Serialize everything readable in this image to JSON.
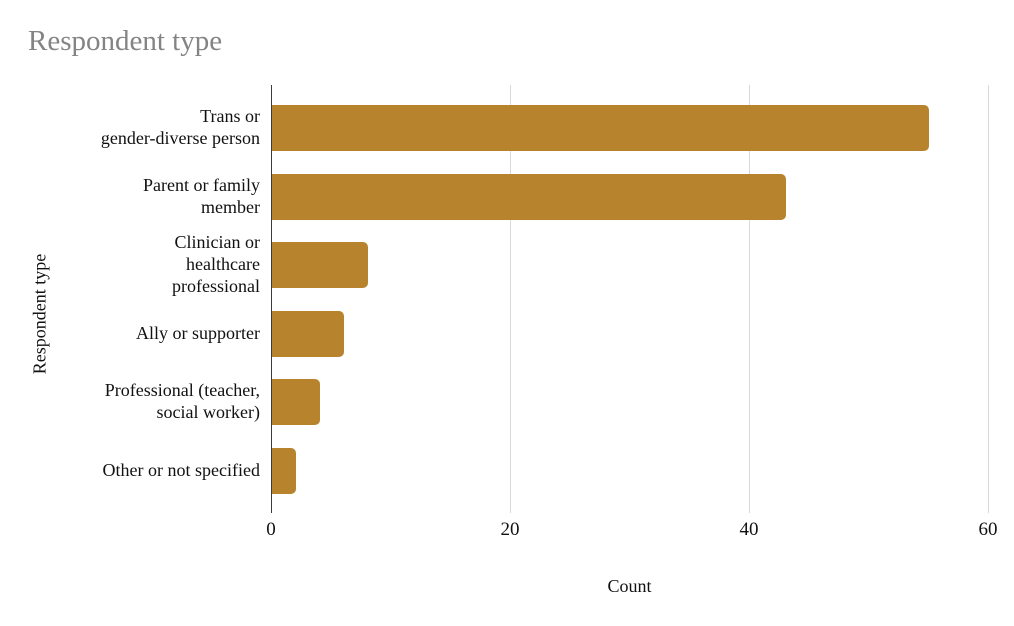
{
  "chart_data": {
    "type": "bar",
    "orientation": "horizontal",
    "title": "Respondent type",
    "xlabel": "Count",
    "ylabel": "Respondent type",
    "categories": [
      "Trans or gender-diverse person",
      "Parent or family member",
      "Clinician or healthcare professional",
      "Ally or supporter",
      "Professional (teacher, social worker)",
      "Other or not specified"
    ],
    "label_lines": [
      [
        "Trans or",
        "gender-diverse person"
      ],
      [
        "Parent or family",
        "member"
      ],
      [
        "Clinician or",
        "healthcare",
        "professional"
      ],
      [
        "Ally or supporter"
      ],
      [
        "Professional (teacher,",
        "social worker)"
      ],
      [
        "Other or not specified"
      ]
    ],
    "values": [
      55,
      43,
      8,
      6,
      4,
      2
    ],
    "xlim": [
      0,
      60
    ],
    "xticks": [
      0,
      20,
      40,
      60
    ],
    "grid": "vertical-gridlines",
    "legend": "none",
    "colors": {
      "bar": "#B7832D",
      "title_text": "#848484",
      "axis_line": "#3b3b3b",
      "gridline": "#d9d9d9",
      "label_text": "#111111"
    }
  }
}
